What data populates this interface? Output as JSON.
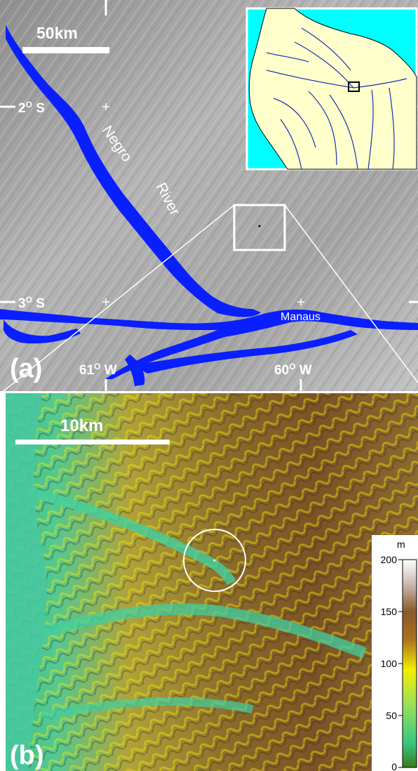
{
  "panel_a": {
    "label": "(a)",
    "scale_bar_label": "50km",
    "lat_labels": [
      {
        "deg": "2",
        "sup": "O",
        "hemi": "S"
      },
      {
        "deg": "3",
        "sup": "O",
        "hemi": "S"
      }
    ],
    "lon_labels": [
      {
        "deg": "61",
        "sup": "O",
        "hemi": "W"
      },
      {
        "deg": "60",
        "sup": "O",
        "hemi": "W"
      }
    ],
    "river_label_1": "Negro",
    "river_label_2": "River",
    "city_label": "Manaus",
    "colors": {
      "water": "#0a1fff",
      "terrain": "#a9a9a9",
      "inset_sea": "#00ffff",
      "inset_land": "#ffffcc",
      "inset_river": "#1a2fb0"
    }
  },
  "panel_b": {
    "label": "(b)",
    "scale_bar_label": "10km",
    "colorbar": {
      "unit": "m",
      "ticks": [
        "200",
        "150",
        "100",
        "50",
        "0"
      ],
      "colors": [
        "#ffffff",
        "#8a5a2a",
        "#f2ee00",
        "#38d890",
        "#3a7a1a"
      ]
    }
  }
}
